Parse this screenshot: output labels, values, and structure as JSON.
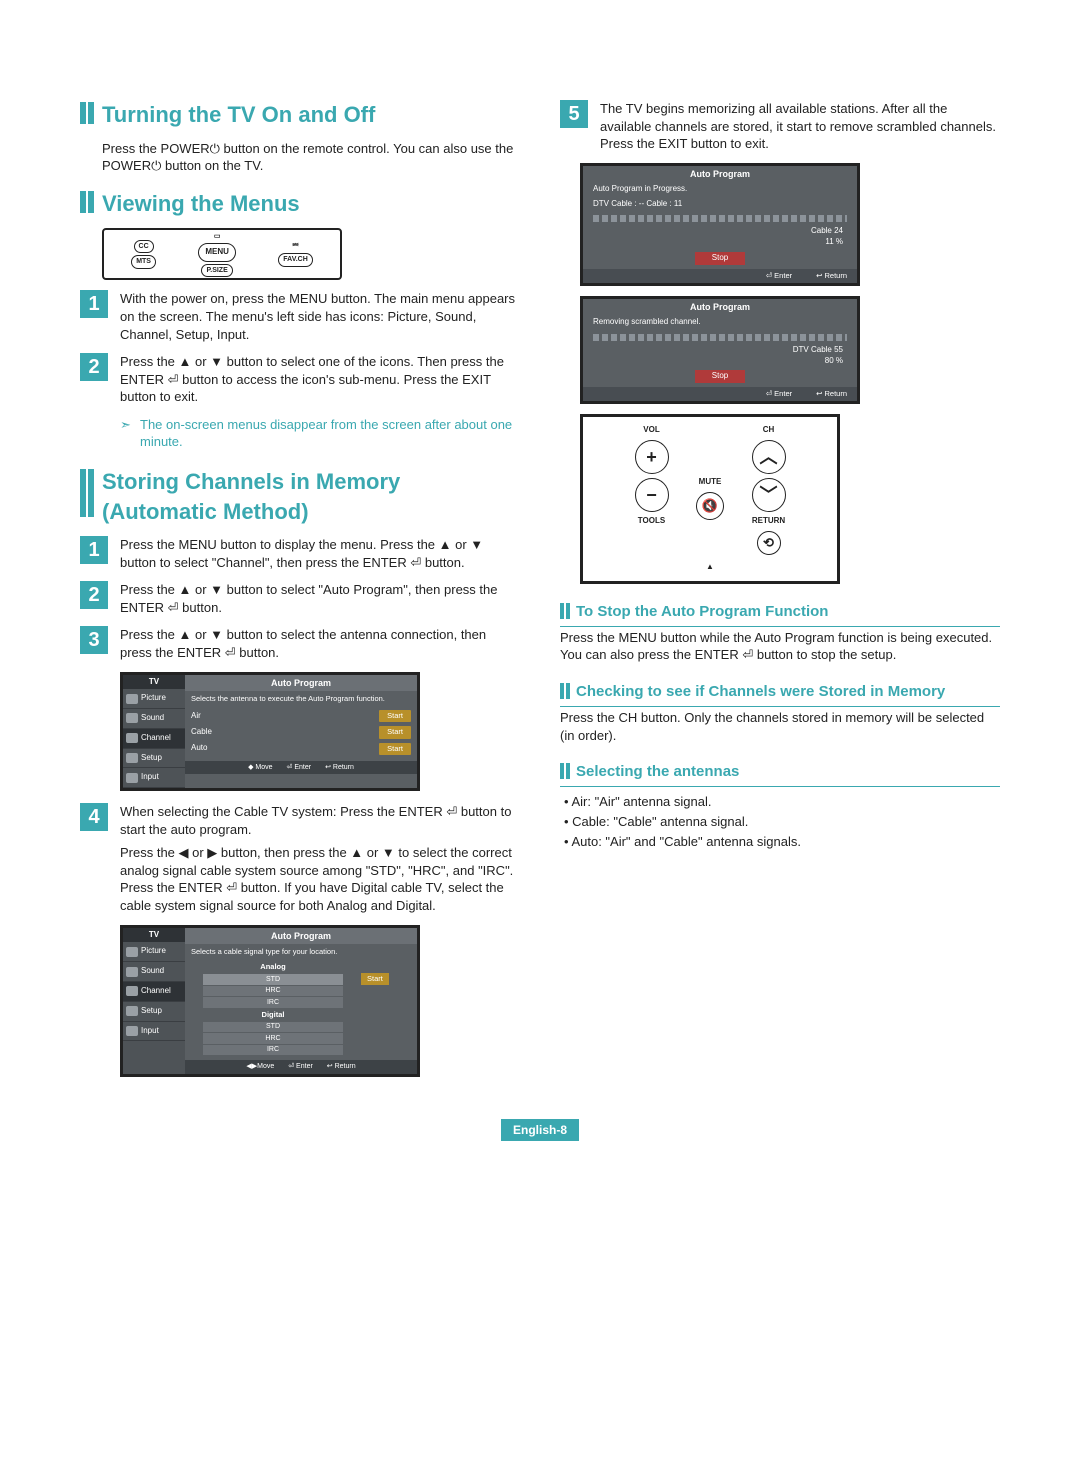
{
  "page": {
    "footer": "English-8"
  },
  "left": {
    "h1": "Turning the TV On and Off",
    "p1": "Press the POWER⏻ button on the remote control.\nYou can also use the POWER⏻ button on the TV.",
    "h2": "Viewing the Menus",
    "remoteSnip": {
      "b_cc": "CC",
      "b_menu": "MENU",
      "b_mts": "MTS",
      "b_psize": "P.SIZE",
      "b_fav": "FAV.CH"
    },
    "view_step1": "With the power on, press the MENU button.\nThe main menu appears on the screen.\nThe menu's left side has icons: Picture, Sound, Channel, Setup, Input.",
    "view_step2": "Press the ▲ or ▼ button to select one of the icons. Then press the ENTER ⏎ button to access the icon's sub-menu. Press the EXIT button to exit.",
    "view_note": "The on-screen menus disappear from the screen after about one minute.",
    "h3": "Storing Channels in Memory (Automatic Method)",
    "st1": "Press the MENU button to display the menu.\nPress the ▲ or ▼ button to select \"Channel\", then press the ENTER ⏎ button.",
    "st2": "Press the ▲ or ▼ button to select \"Auto Program\", then press the ENTER ⏎ button.",
    "st3": "Press the ▲ or ▼ button to select the antenna connection, then press the ENTER ⏎ button.",
    "osd1": {
      "tv": "TV",
      "title": "Auto Program",
      "desc": "Selects the antenna to execute the Auto Program function.",
      "side": [
        "Picture",
        "Sound",
        "Channel",
        "Setup",
        "Input"
      ],
      "rows": [
        {
          "lbl": "Air",
          "btn": "Start"
        },
        {
          "lbl": "Cable",
          "btn": "Start"
        },
        {
          "lbl": "Auto",
          "btn": "Start"
        }
      ],
      "foot": [
        "◆ Move",
        "⏎ Enter",
        "↩ Return"
      ]
    },
    "st4a": "When selecting the Cable TV system:\nPress the ENTER ⏎ button to start the auto program.",
    "st4b": "Press the ◀ or ▶ button, then press the ▲ or ▼ to select the correct analog signal cable system source among \"STD\", \"HRC\", and \"IRC\".\nPress the ENTER ⏎ button.\nIf you have Digital cable TV, select the cable system signal source for both Analog and Digital.",
    "osd2": {
      "tv": "TV",
      "title": "Auto Program",
      "desc": "Selects a cable signal type for your location.",
      "analog_hdr": "Analog",
      "analog": [
        "STD",
        "HRC",
        "IRC"
      ],
      "digital_hdr": "Digital",
      "digital": [
        "STD",
        "HRC",
        "IRC"
      ],
      "start": "Start",
      "side": [
        "Picture",
        "Sound",
        "Channel",
        "Setup",
        "Input"
      ],
      "foot": [
        "◀▶Move",
        "⏎ Enter",
        "↩ Return"
      ]
    }
  },
  "right": {
    "st5": "The TV begins memorizing all available stations. After all the available channels are stored, it start to remove scrambled channels.\nPress the EXIT button to exit.",
    "prog1": {
      "hdr": "Auto Program",
      "ln1": "Auto Program in Progress.",
      "ln2": "DTV Cable : --        Cable : 11",
      "info1": "Cable   24",
      "info2": "11   %",
      "stop": "Stop",
      "ft": [
        "⏎ Enter",
        "↩ Return"
      ]
    },
    "prog2": {
      "hdr": "Auto Program",
      "ln1": "Removing scrambled channel.",
      "info1": "DTV Cable 55",
      "info2": "80  %",
      "stop": "Stop",
      "ft": [
        "⏎ Enter",
        "↩ Return"
      ]
    },
    "remote": {
      "vol": "VOL",
      "ch": "CH",
      "mute": "MUTE",
      "tools": "TOOLS",
      "return": "RETURN",
      "plus": "+",
      "minus": "−",
      "up": "︿",
      "down": "﹀",
      "mute_ic": "🔇",
      "ret_ic": "⟲",
      "tri": "▲"
    },
    "sub1": "To Stop the Auto Program Function",
    "sub1_txt": "Press the MENU button while the Auto Program function is being executed. You can also press the ENTER ⏎ button to stop the setup.",
    "sub2": "Checking to see if Channels were Stored in Memory",
    "sub2_txt": "Press the CH button. Only the channels stored in memory will be selected (in order).",
    "sub3": "Selecting the antennas",
    "bullets": [
      "Air: \"Air\" antenna signal.",
      "Cable: \"Cable\" antenna signal.",
      "Auto: \"Air\" and \"Cable\" antenna signals."
    ]
  }
}
